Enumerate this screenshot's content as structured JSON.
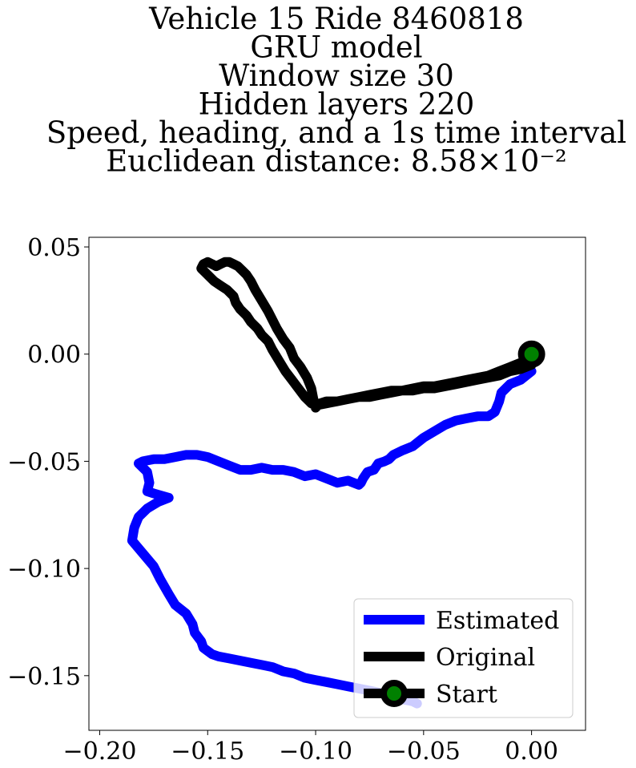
{
  "chart_data": {
    "type": "line",
    "title_lines": [
      "Vehicle 15 Ride 8460818",
      "GRU model",
      "Window size 30",
      "Hidden layers 220",
      "Speed, heading, and a 1s time interval",
      "Euclidean distance: 8.58×10⁻²"
    ],
    "xlabel": "",
    "ylabel": "",
    "xlim": [
      -0.205,
      0.025
    ],
    "ylim": [
      -0.1755,
      0.0545
    ],
    "x_ticks": [
      -0.2,
      -0.15,
      -0.1,
      -0.05,
      0.0
    ],
    "x_tick_labels": [
      "−0.20",
      "−0.15",
      "−0.10",
      "−0.05",
      "0.00"
    ],
    "y_ticks": [
      0.05,
      0.0,
      -0.05,
      -0.1,
      -0.15
    ],
    "y_tick_labels": [
      "0.05",
      "0.00",
      "−0.05",
      "−0.10",
      "−0.15"
    ],
    "grid": false,
    "legend_position": "lower-right",
    "series": [
      {
        "name": "Estimated",
        "color": "#0000ff",
        "x": [
          0.0,
          -0.005,
          -0.01,
          -0.014,
          -0.015,
          -0.017,
          -0.02,
          -0.025,
          -0.03,
          -0.035,
          -0.04,
          -0.045,
          -0.05,
          -0.055,
          -0.06,
          -0.064,
          -0.066,
          -0.068,
          -0.071,
          -0.073,
          -0.076,
          -0.078,
          -0.079,
          -0.08,
          -0.085,
          -0.09,
          -0.095,
          -0.1,
          -0.105,
          -0.11,
          -0.115,
          -0.12,
          -0.125,
          -0.13,
          -0.135,
          -0.14,
          -0.145,
          -0.15,
          -0.155,
          -0.16,
          -0.165,
          -0.17,
          -0.175,
          -0.18,
          -0.182,
          -0.178,
          -0.177,
          -0.178,
          -0.175,
          -0.168,
          -0.173,
          -0.178,
          -0.182,
          -0.184,
          -0.185,
          -0.18,
          -0.175,
          -0.172,
          -0.168,
          -0.165,
          -0.16,
          -0.157,
          -0.156,
          -0.153,
          -0.152,
          -0.148,
          -0.145,
          -0.14,
          -0.13,
          -0.125,
          -0.12,
          -0.115,
          -0.11,
          -0.105,
          -0.1,
          -0.095,
          -0.09,
          -0.085,
          -0.08,
          -0.075,
          -0.07,
          -0.065,
          -0.06,
          -0.055,
          -0.053
        ],
        "y": [
          -0.008,
          -0.012,
          -0.014,
          -0.018,
          -0.022,
          -0.027,
          -0.029,
          -0.029,
          -0.03,
          -0.031,
          -0.033,
          -0.036,
          -0.039,
          -0.043,
          -0.045,
          -0.047,
          -0.049,
          -0.05,
          -0.051,
          -0.054,
          -0.055,
          -0.058,
          -0.06,
          -0.061,
          -0.059,
          -0.06,
          -0.058,
          -0.056,
          -0.057,
          -0.055,
          -0.054,
          -0.054,
          -0.053,
          -0.054,
          -0.054,
          -0.052,
          -0.05,
          -0.048,
          -0.047,
          -0.047,
          -0.048,
          -0.049,
          -0.049,
          -0.05,
          -0.051,
          -0.055,
          -0.06,
          -0.064,
          -0.065,
          -0.067,
          -0.069,
          -0.072,
          -0.076,
          -0.081,
          -0.087,
          -0.093,
          -0.099,
          -0.105,
          -0.112,
          -0.117,
          -0.121,
          -0.126,
          -0.13,
          -0.134,
          -0.137,
          -0.14,
          -0.141,
          -0.142,
          -0.144,
          -0.145,
          -0.146,
          -0.148,
          -0.149,
          -0.151,
          -0.152,
          -0.153,
          -0.154,
          -0.155,
          -0.156,
          -0.157,
          -0.158,
          -0.159,
          -0.161,
          -0.162,
          -0.163
        ]
      },
      {
        "name": "Original",
        "color": "#000000",
        "x": [
          0.0,
          -0.005,
          -0.01,
          -0.015,
          -0.02,
          -0.025,
          -0.03,
          -0.035,
          -0.04,
          -0.045,
          -0.05,
          -0.055,
          -0.06,
          -0.065,
          -0.07,
          -0.075,
          -0.08,
          -0.085,
          -0.09,
          -0.095,
          -0.098,
          -0.1,
          -0.101,
          -0.102,
          -0.104,
          -0.107,
          -0.11,
          -0.112,
          -0.115,
          -0.118,
          -0.12,
          -0.122,
          -0.125,
          -0.128,
          -0.13,
          -0.132,
          -0.134,
          -0.136,
          -0.138,
          -0.14,
          -0.142,
          -0.144,
          -0.146,
          -0.148,
          -0.15,
          -0.152,
          -0.153,
          -0.15,
          -0.147,
          -0.144,
          -0.141,
          -0.138,
          -0.137,
          -0.135,
          -0.132,
          -0.13,
          -0.127,
          -0.125,
          -0.122,
          -0.12,
          -0.117,
          -0.114,
          -0.111,
          -0.108,
          -0.105,
          -0.102,
          -0.1,
          -0.095,
          -0.09,
          -0.085,
          -0.08,
          -0.075,
          -0.07,
          -0.065,
          -0.06,
          -0.055,
          -0.05,
          -0.045,
          -0.04,
          -0.035,
          -0.03,
          -0.025,
          -0.02,
          -0.015,
          -0.01,
          -0.005,
          0.0
        ],
        "y": [
          -0.005,
          -0.007,
          -0.008,
          -0.01,
          -0.011,
          -0.012,
          -0.013,
          -0.014,
          -0.015,
          -0.016,
          -0.016,
          -0.017,
          -0.017,
          -0.018,
          -0.019,
          -0.02,
          -0.02,
          -0.021,
          -0.022,
          -0.022,
          -0.023,
          -0.025,
          -0.021,
          -0.016,
          -0.011,
          -0.006,
          -0.002,
          0.003,
          0.007,
          0.012,
          0.016,
          0.02,
          0.025,
          0.03,
          0.034,
          0.037,
          0.039,
          0.041,
          0.042,
          0.043,
          0.043,
          0.042,
          0.041,
          0.042,
          0.043,
          0.042,
          0.04,
          0.037,
          0.034,
          0.032,
          0.03,
          0.027,
          0.024,
          0.021,
          0.018,
          0.015,
          0.012,
          0.009,
          0.006,
          0.002,
          -0.003,
          -0.008,
          -0.012,
          -0.016,
          -0.02,
          -0.023,
          -0.024,
          -0.023,
          -0.022,
          -0.021,
          -0.02,
          -0.019,
          -0.018,
          -0.017,
          -0.017,
          -0.016,
          -0.015,
          -0.015,
          -0.014,
          -0.013,
          -0.012,
          -0.011,
          -0.01,
          -0.008,
          -0.006,
          -0.004,
          -0.002
        ]
      },
      {
        "name": "Start",
        "color": "#000000",
        "marker_color": "#008000",
        "x": [
          0.0
        ],
        "y": [
          0.0
        ]
      }
    ]
  }
}
